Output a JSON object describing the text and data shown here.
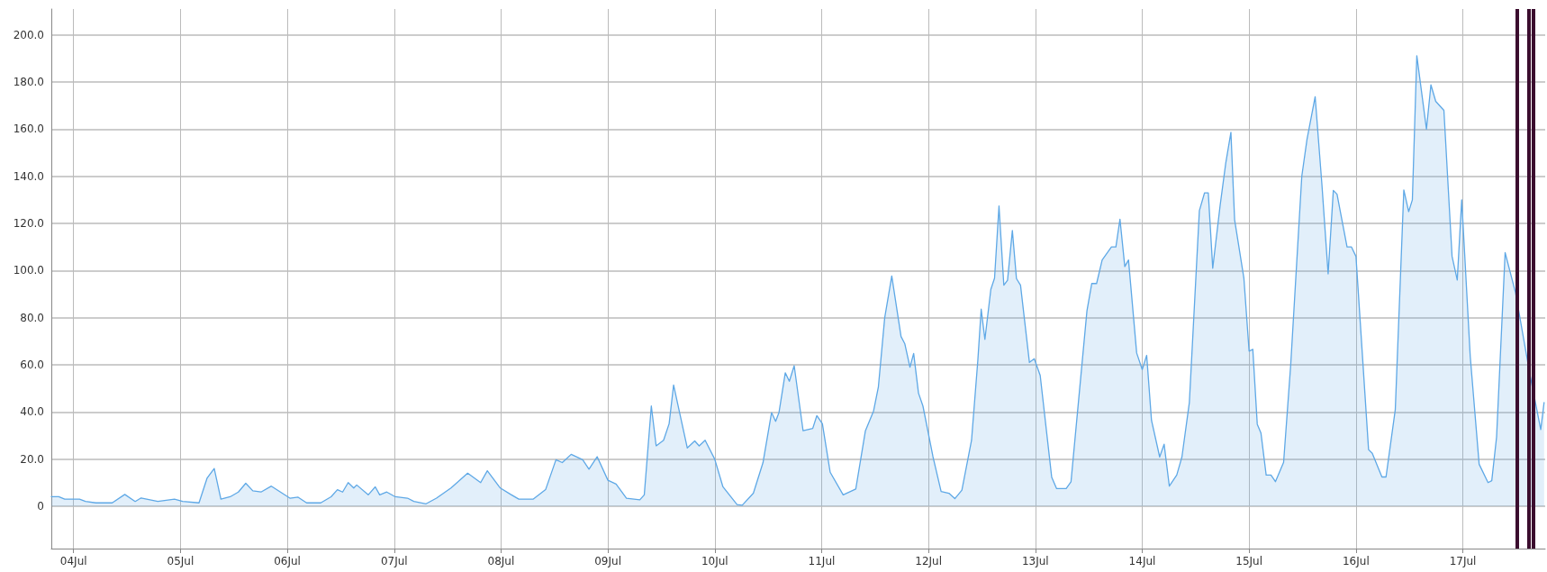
{
  "chart_data": {
    "type": "area",
    "x": [
      "--07-03T19:00",
      "--07-03T20:40",
      "--07-03T22:00",
      "--07-04T01:20",
      "--07-04T02:40",
      "--07-04T05:00",
      "--07-04T08:40",
      "--07-04T11:30",
      "--07-04T13:50",
      "--07-04T15:10",
      "--07-04T18:55",
      "--07-04T22:40",
      "--07-05T00:30",
      "--07-05T04:10",
      "--07-05T06:00",
      "--07-05T07:35",
      "--07-05T09:05",
      "--07-05T11:10",
      "--07-05T13:00",
      "--07-05T14:40",
      "--07-05T16:15",
      "--07-05T18:05",
      "--07-05T20:25",
      "--07-06T00:35",
      "--07-06T02:25",
      "--07-06T04:20",
      "--07-06T07:30",
      "--07-06T09:50",
      "--07-06T11:15",
      "--07-06T12:25",
      "--07-06T13:40",
      "--07-06T14:55",
      "--07-06T15:35",
      "--07-06T18:10",
      "--07-06T19:45",
      "--07-06T20:45",
      "--07-06T22:20",
      "--07-07T00:15",
      "--07-07T03:00",
      "--07-07T04:25",
      "--07-07T07:10",
      "--07-07T09:30",
      "--07-07T12:45",
      "--07-07T16:30",
      "--07-07T19:25",
      "--07-07T20:55",
      "--07-07T23:50",
      "--07-08T02:10",
      "--07-08T04:00",
      "--07-08T07:15",
      "--07-08T10:00",
      "--07-08T12:20",
      "--07-08T13:45",
      "--07-08T15:45",
      "--07-08T18:20",
      "--07-08T19:45",
      "--07-08T21:35",
      "--07-09T00:00",
      "--07-09T01:50",
      "--07-09T04:10",
      "--07-09T07:10",
      "--07-09T08:10",
      "--07-09T09:45",
      "--07-09T10:50",
      "--07-09T12:30",
      "--07-09T13:45",
      "--07-09T14:45",
      "--07-09T17:50",
      "--07-09T19:30",
      "--07-09T20:30",
      "--07-09T21:50",
      "--07-10T00:00",
      "--07-10T01:50",
      "--07-10T05:00",
      "--07-10T06:10",
      "--07-10T08:40",
      "--07-10T10:50",
      "--07-10T12:45",
      "--07-10T13:40",
      "--07-10T14:25",
      "--07-10T15:50",
      "--07-10T16:45",
      "--07-10T17:50",
      "--07-10T19:50",
      "--07-10T22:00",
      "--07-10T22:55",
      "--07-11T00:10",
      "--07-11T01:55",
      "--07-11T04:50",
      "--07-11T07:40",
      "--07-11T09:50",
      "--07-11T11:40",
      "--07-11T12:45",
      "--07-11T14:10",
      "--07-11T15:45",
      "--07-11T17:50",
      "--07-11T18:40",
      "--07-11T19:50",
      "--07-11T20:40",
      "--07-11T21:45",
      "--07-11T22:45",
      "--07-12T01:00",
      "--07-12T02:50",
      "--07-12T04:35",
      "--07-12T05:55",
      "--07-12T07:30",
      "--07-12T09:40",
      "--07-12T11:05",
      "--07-12T11:50",
      "--07-12T12:40",
      "--07-12T14:00",
      "--07-12T14:50",
      "--07-12T15:50",
      "--07-12T16:55",
      "--07-12T17:45",
      "--07-12T18:50",
      "--07-12T19:45",
      "--07-12T20:40",
      "--07-12T22:40",
      "--07-12T23:45",
      "--07-13T01:05",
      "--07-13T03:40",
      "--07-13T04:45",
      "--07-13T06:55",
      "--07-13T08:00",
      "--07-13T11:35",
      "--07-13T12:40",
      "--07-13T13:45",
      "--07-13T15:00",
      "--07-13T17:05",
      "--07-13T18:05",
      "--07-13T19:00",
      "--07-13T20:05",
      "--07-13T20:55",
      "--07-13T22:45",
      "--07-14T00:00",
      "--07-14T01:00",
      "--07-14T02:05",
      "--07-14T03:55",
      "--07-14T04:55",
      "--07-14T06:05",
      "--07-14T07:45",
      "--07-14T08:55",
      "--07-14T10:35",
      "--07-14T12:50",
      "--07-14T14:00",
      "--07-14T14:50",
      "--07-14T15:50",
      "--07-14T17:30",
      "--07-14T18:45",
      "--07-14T19:55",
      "--07-14T20:45",
      "--07-14T22:50",
      "--07-15T00:00",
      "--07-15T00:50",
      "--07-15T01:50",
      "--07-15T02:40",
      "--07-15T03:50",
      "--07-15T04:55",
      "--07-15T05:55",
      "--07-15T07:45",
      "--07-15T09:20",
      "--07-15T11:50",
      "--07-15T13:00",
      "--07-15T14:50",
      "--07-15T16:20",
      "--07-15T17:45",
      "--07-15T18:55",
      "--07-15T19:45",
      "--07-15T22:00",
      "--07-15T23:00",
      "--07-16T00:00",
      "--07-16T02:50",
      "--07-16T03:40",
      "--07-16T05:50",
      "--07-16T06:45",
      "--07-16T08:50",
      "--07-16T10:45",
      "--07-16T11:50",
      "--07-16T12:40",
      "--07-16T13:40",
      "--07-16T15:50",
      "--07-16T16:50",
      "--07-16T17:55",
      "--07-16T19:45",
      "--07-16T21:35",
      "--07-16T22:45",
      "--07-16T23:45",
      "--07-17T01:40",
      "--07-17T03:40",
      "--07-17T05:40",
      "--07-17T06:30",
      "--07-17T07:35",
      "--07-17T09:30",
      "--07-17T11:50",
      "--07-17T15:05",
      "--07-17T17:30",
      "--07-17T18:15"
    ],
    "series": [
      {
        "color": "#5ea8e6",
        "values": [
          4,
          4,
          3,
          3,
          2,
          1.4,
          1.4,
          5,
          2,
          3.5,
          2,
          3,
          2,
          1.4,
          12,
          16,
          3,
          4,
          6,
          9.7,
          6.5,
          6,
          8.5,
          3.4,
          3.8,
          1.4,
          1.4,
          4,
          7,
          6,
          10,
          7.7,
          9,
          4.8,
          8.2,
          4.8,
          6,
          4,
          3.4,
          2,
          1,
          3.4,
          7.7,
          14,
          10,
          15,
          7.7,
          5,
          3,
          3,
          7,
          19.7,
          18.5,
          22,
          19.7,
          15.7,
          21,
          11,
          9.4,
          3.4,
          2.7,
          4.8,
          42.5,
          25.6,
          28,
          35,
          51.4,
          24.7,
          27.7,
          25.6,
          28,
          19.9,
          8.2,
          0.7,
          0.4,
          5.5,
          18.5,
          39.7,
          36,
          39.7,
          56.6,
          53,
          59.6,
          32,
          33,
          38.4,
          35,
          14.4,
          4.8,
          7.3,
          32,
          40.4,
          50.7,
          80,
          97.7,
          72,
          69,
          59,
          64.8,
          48,
          42.5,
          21,
          6.2,
          5.5,
          3.2,
          6.8,
          28,
          62,
          83.6,
          70.8,
          92,
          96.8,
          127.4,
          93.8,
          95.9,
          117,
          96.6,
          93.8,
          61,
          62.6,
          55.5,
          12.3,
          7.5,
          7.5,
          10.3,
          82.9,
          94.5,
          94.5,
          104.5,
          110,
          110,
          121.8,
          101.7,
          104.5,
          65,
          58,
          64,
          36.4,
          20.9,
          26.3,
          8.5,
          13.2,
          20.9,
          44,
          125.4,
          133,
          133,
          101,
          127.7,
          145.5,
          158.7,
          121.5,
          96.7,
          65.8,
          66.6,
          34.8,
          31,
          13.2,
          13.2,
          10.4,
          18.6,
          59.6,
          140,
          155.6,
          173.8,
          137,
          98.6,
          134,
          132.4,
          110,
          110,
          106,
          24,
          22.4,
          12.4,
          12.4,
          41,
          134.2,
          125,
          130,
          191.2,
          160,
          178.8,
          171.8,
          168,
          106,
          96,
          130,
          63.5,
          17.8,
          10,
          10.8,
          29.4,
          107.6,
          90.6,
          55.7,
          32.5,
          44
        ]
      }
    ],
    "xlim": [
      "--07-03T19:00",
      "--07-17T18:30"
    ],
    "xticks": [
      {
        "value": "--07-04",
        "label": "04Jul"
      },
      {
        "value": "--07-05",
        "label": "05Jul"
      },
      {
        "value": "--07-06",
        "label": "06Jul"
      },
      {
        "value": "--07-07",
        "label": "07Jul"
      },
      {
        "value": "--07-08",
        "label": "08Jul"
      },
      {
        "value": "--07-09",
        "label": "09Jul"
      },
      {
        "value": "--07-10",
        "label": "10Jul"
      },
      {
        "value": "--07-11",
        "label": "11Jul"
      },
      {
        "value": "--07-12",
        "label": "12Jul"
      },
      {
        "value": "--07-13",
        "label": "13Jul"
      },
      {
        "value": "--07-14",
        "label": "14Jul"
      },
      {
        "value": "--07-15",
        "label": "15Jul"
      },
      {
        "value": "--07-16",
        "label": "16Jul"
      },
      {
        "value": "--07-17",
        "label": "17Jul"
      }
    ],
    "ylim": [
      -18,
      211
    ],
    "yticks": [
      0,
      {
        "value": 20,
        "label": "20.0"
      },
      {
        "value": 40,
        "label": "40.0"
      },
      {
        "value": 60,
        "label": "60.0"
      },
      {
        "value": 80,
        "label": "80.0"
      },
      {
        "value": 100,
        "label": "100.0"
      },
      {
        "value": 120,
        "label": "120.0"
      },
      {
        "value": 140,
        "label": "140.0"
      },
      {
        "value": 160,
        "label": "160.0"
      },
      {
        "value": 180,
        "label": "180.0"
      },
      {
        "value": 200,
        "label": "200.0"
      }
    ],
    "ref_lines": [
      {
        "axis": "x",
        "value": "--07-17T12:10",
        "color": "#3b0d2e"
      },
      {
        "axis": "x",
        "value": "--07-17T14:50",
        "color": "#3b0d2e"
      },
      {
        "axis": "x",
        "value": "--07-17T15:50",
        "color": "#3b0d2e"
      }
    ],
    "grid": true,
    "marker": "none",
    "line_style": "solid"
  }
}
